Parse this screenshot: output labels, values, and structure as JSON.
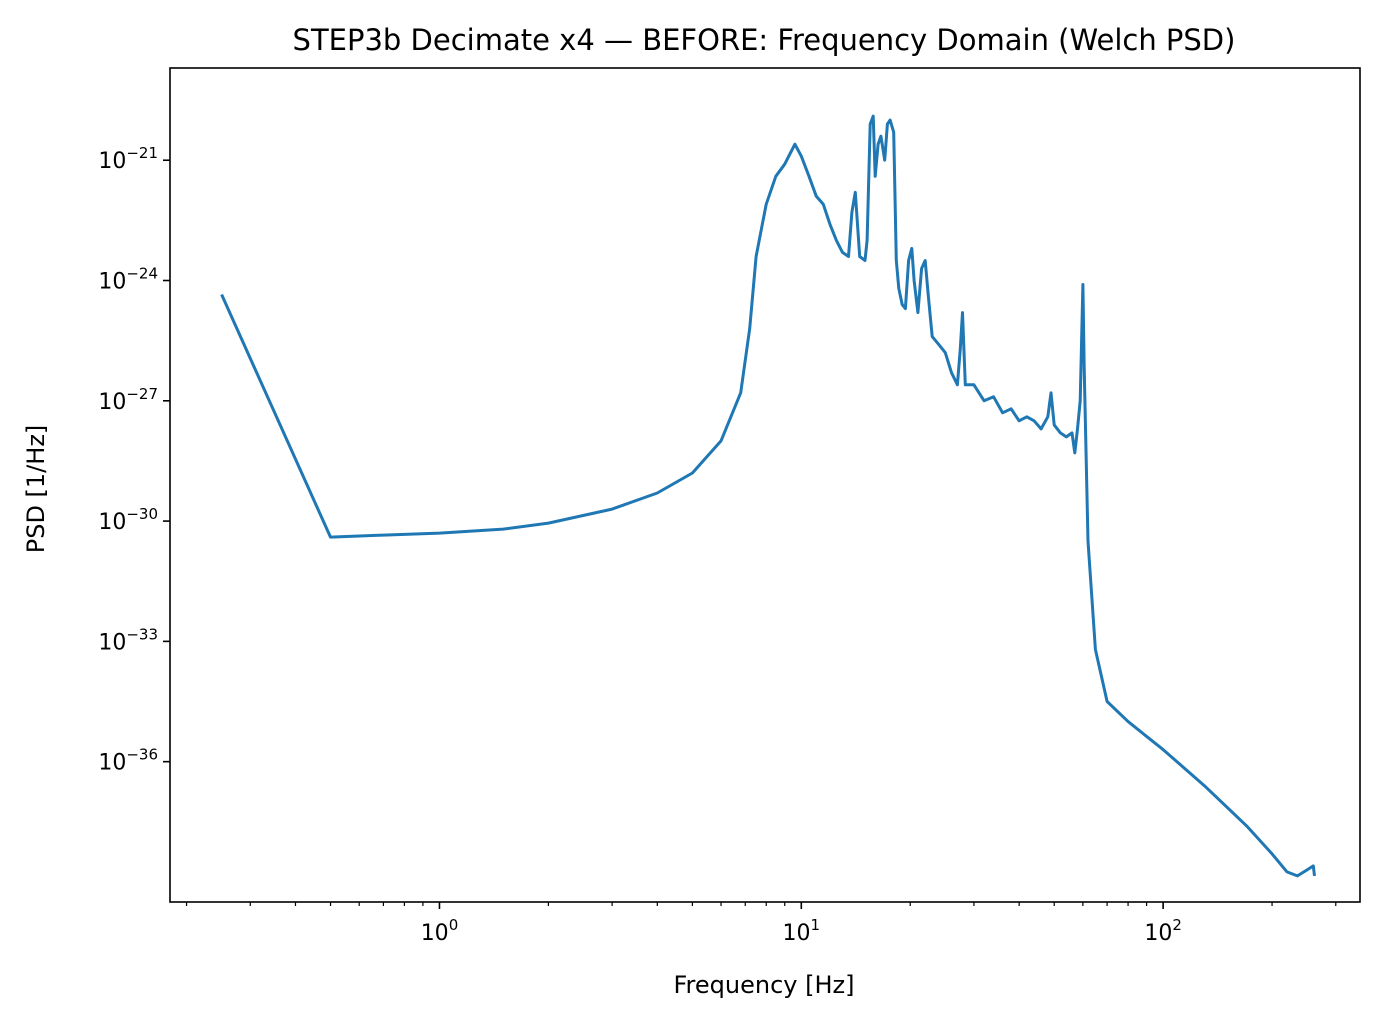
{
  "chart_data": {
    "type": "line",
    "title": "STEP3b Decimate x4 — BEFORE: Frequency Domain (Welch PSD)",
    "xlabel": "Frequency [Hz]",
    "ylabel": "PSD [1/Hz]",
    "xscale": "log",
    "yscale": "log",
    "xlim": [
      0.18,
      350
    ],
    "ylim_exp": [
      -39.5,
      -18.7
    ],
    "grid": false,
    "x_ticks": [
      {
        "value": 1,
        "base": "10",
        "exp": "0"
      },
      {
        "value": 10,
        "base": "10",
        "exp": "1"
      },
      {
        "value": 100,
        "base": "10",
        "exp": "2"
      }
    ],
    "y_ticks": [
      {
        "exp_value": -21,
        "base": "10",
        "exp": "−21"
      },
      {
        "exp_value": -24,
        "base": "10",
        "exp": "−24"
      },
      {
        "exp_value": -27,
        "base": "10",
        "exp": "−27"
      },
      {
        "exp_value": -30,
        "base": "10",
        "exp": "−30"
      },
      {
        "exp_value": -33,
        "base": "10",
        "exp": "−33"
      },
      {
        "exp_value": -36,
        "base": "10",
        "exp": "−36"
      }
    ],
    "series": [
      {
        "name": "PSD",
        "color": "#1f77b4",
        "points_log10_psd": [
          [
            0.25,
            -24.35
          ],
          [
            0.5,
            -30.4
          ],
          [
            0.7,
            -30.35
          ],
          [
            1.0,
            -30.3
          ],
          [
            1.5,
            -30.2
          ],
          [
            2.0,
            -30.05
          ],
          [
            3.0,
            -29.7
          ],
          [
            4.0,
            -29.3
          ],
          [
            5.0,
            -28.8
          ],
          [
            6.0,
            -28.0
          ],
          [
            6.8,
            -26.8
          ],
          [
            7.2,
            -25.2
          ],
          [
            7.5,
            -23.4
          ],
          [
            7.8,
            -22.6
          ],
          [
            8.0,
            -22.1
          ],
          [
            8.5,
            -21.4
          ],
          [
            9.0,
            -21.1
          ],
          [
            9.6,
            -20.6
          ],
          [
            10.0,
            -20.9
          ],
          [
            10.5,
            -21.4
          ],
          [
            11.0,
            -21.9
          ],
          [
            11.5,
            -22.1
          ],
          [
            12.0,
            -22.6
          ],
          [
            12.5,
            -23.0
          ],
          [
            13.0,
            -23.3
          ],
          [
            13.5,
            -23.4
          ],
          [
            13.8,
            -22.3
          ],
          [
            14.1,
            -21.8
          ],
          [
            14.5,
            -23.4
          ],
          [
            15.0,
            -23.5
          ],
          [
            15.2,
            -23.0
          ],
          [
            15.5,
            -20.1
          ],
          [
            15.8,
            -19.9
          ],
          [
            16.0,
            -21.4
          ],
          [
            16.3,
            -20.6
          ],
          [
            16.6,
            -20.4
          ],
          [
            17.0,
            -21.0
          ],
          [
            17.3,
            -20.1
          ],
          [
            17.6,
            -20.0
          ],
          [
            18.0,
            -20.3
          ],
          [
            18.3,
            -23.5
          ],
          [
            18.6,
            -24.2
          ],
          [
            19.0,
            -24.6
          ],
          [
            19.4,
            -24.7
          ],
          [
            19.8,
            -23.5
          ],
          [
            20.2,
            -23.2
          ],
          [
            20.5,
            -24.0
          ],
          [
            21.0,
            -24.8
          ],
          [
            21.5,
            -23.7
          ],
          [
            22.0,
            -23.5
          ],
          [
            22.4,
            -24.3
          ],
          [
            23.0,
            -25.4
          ],
          [
            24.0,
            -25.6
          ],
          [
            25.0,
            -25.8
          ],
          [
            26.0,
            -26.3
          ],
          [
            27.0,
            -26.6
          ],
          [
            27.5,
            -25.7
          ],
          [
            27.9,
            -24.8
          ],
          [
            28.4,
            -26.6
          ],
          [
            30.0,
            -26.6
          ],
          [
            32.0,
            -27.0
          ],
          [
            34.0,
            -26.9
          ],
          [
            36.0,
            -27.3
          ],
          [
            38.0,
            -27.2
          ],
          [
            40.0,
            -27.5
          ],
          [
            42.0,
            -27.4
          ],
          [
            44.0,
            -27.5
          ],
          [
            46.0,
            -27.7
          ],
          [
            48.0,
            -27.4
          ],
          [
            49.0,
            -26.8
          ],
          [
            50.0,
            -27.6
          ],
          [
            52.0,
            -27.8
          ],
          [
            54.0,
            -27.9
          ],
          [
            56.0,
            -27.8
          ],
          [
            57.0,
            -28.3
          ],
          [
            58.0,
            -27.7
          ],
          [
            59.0,
            -27.0
          ],
          [
            60.0,
            -24.1
          ],
          [
            60.5,
            -26.2
          ],
          [
            62.0,
            -30.5
          ],
          [
            65.0,
            -33.2
          ],
          [
            70.0,
            -34.5
          ],
          [
            80.0,
            -35.0
          ],
          [
            100.0,
            -35.7
          ],
          [
            130.0,
            -36.6
          ],
          [
            170.0,
            -37.6
          ],
          [
            200.0,
            -38.3
          ],
          [
            220.0,
            -38.75
          ],
          [
            235.0,
            -38.85
          ],
          [
            250.0,
            -38.7
          ],
          [
            260.0,
            -38.6
          ],
          [
            262.0,
            -38.85
          ]
        ]
      }
    ]
  }
}
